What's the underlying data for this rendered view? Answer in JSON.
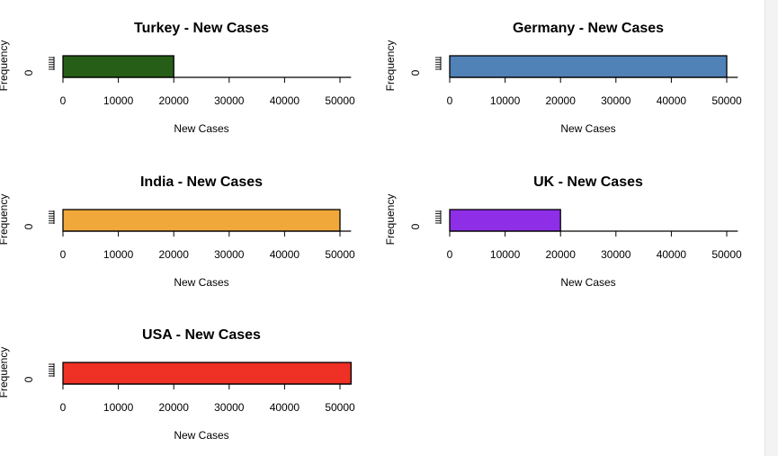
{
  "chart_data": [
    {
      "type": "bar",
      "title": "Turkey - New Cases",
      "xlabel": "New Cases",
      "ylabel": "Frequency",
      "xticks": [
        "0",
        "10000",
        "20000",
        "30000",
        "40000",
        "50000"
      ],
      "ytick_zero": "0",
      "bins": [
        {
          "start": 0,
          "end": 20000
        }
      ],
      "color": "#275e17"
    },
    {
      "type": "bar",
      "title": "Germany - New Cases",
      "xlabel": "New Cases",
      "ylabel": "Frequency",
      "xticks": [
        "0",
        "10000",
        "20000",
        "30000",
        "40000",
        "50000"
      ],
      "ytick_zero": "0",
      "bins": [
        {
          "start": 0,
          "end": 50000
        }
      ],
      "color": "#5081b7"
    },
    {
      "type": "bar",
      "title": "India - New Cases",
      "xlabel": "New Cases",
      "ylabel": "Frequency",
      "xticks": [
        "0",
        "10000",
        "20000",
        "30000",
        "40000",
        "50000"
      ],
      "ytick_zero": "0",
      "bins": [
        {
          "start": 0,
          "end": 50000
        }
      ],
      "color": "#f0a83a"
    },
    {
      "type": "bar",
      "title": "UK - New Cases",
      "xlabel": "New Cases",
      "ylabel": "Frequency",
      "xticks": [
        "0",
        "10000",
        "20000",
        "30000",
        "40000",
        "50000"
      ],
      "ytick_zero": "0",
      "bins": [
        {
          "start": 0,
          "end": 20000
        }
      ],
      "color": "#8e2ee6"
    },
    {
      "type": "bar",
      "title": "USA - New Cases",
      "xlabel": "New Cases",
      "ylabel": "Frequency",
      "xticks": [
        "0",
        "10000",
        "20000",
        "30000",
        "40000",
        "50000"
      ],
      "ytick_zero": "0",
      "bins": [
        {
          "start": 0,
          "end": 52000
        }
      ],
      "color": "#ee3124"
    }
  ]
}
